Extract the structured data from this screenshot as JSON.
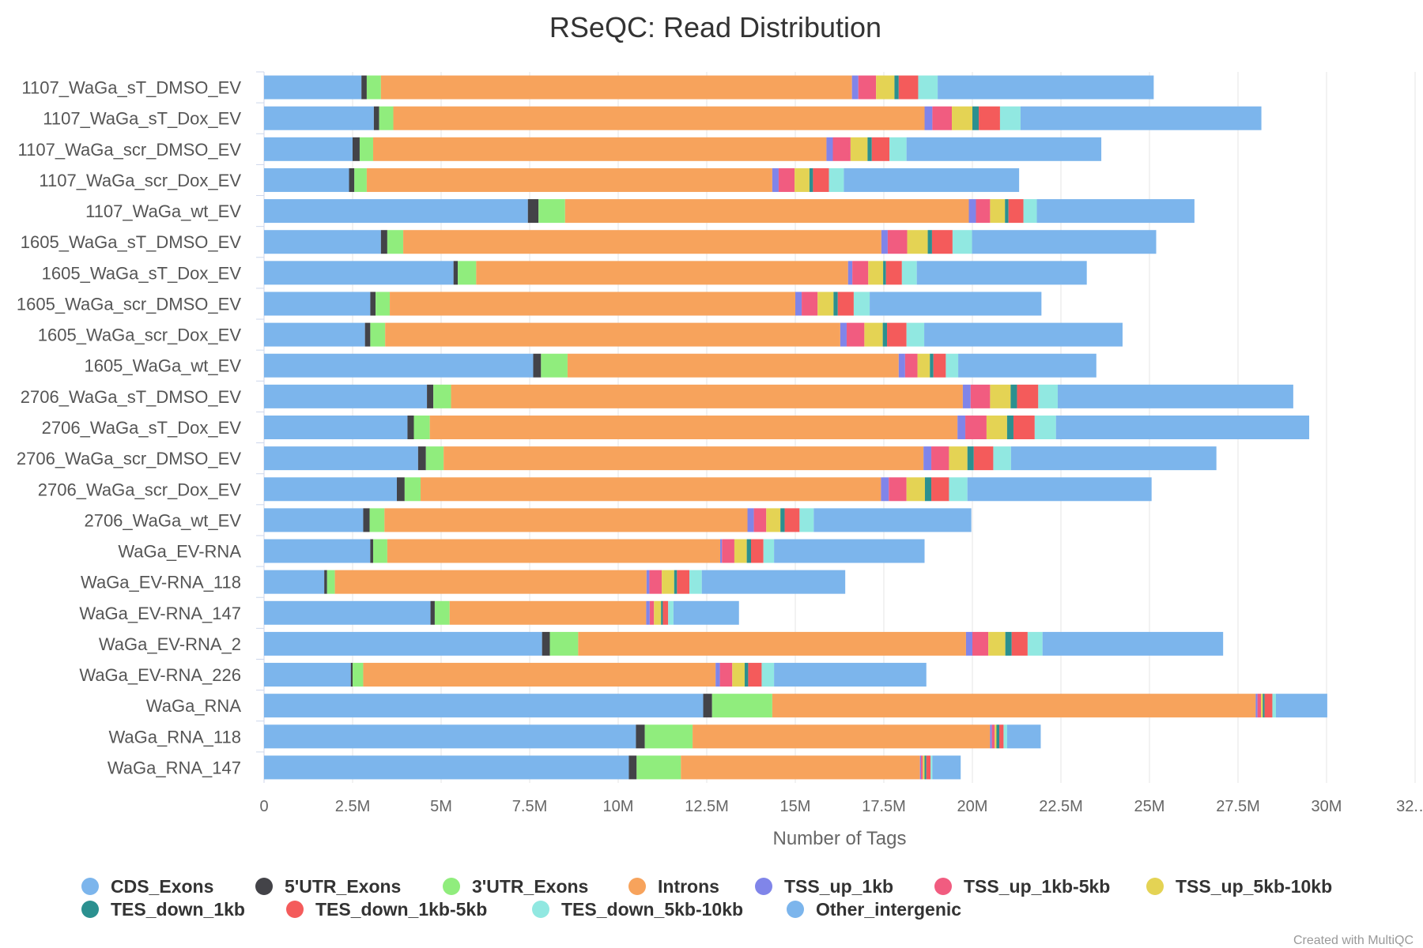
{
  "chart_data": {
    "type": "bar",
    "orientation": "horizontal",
    "stacked": true,
    "title": "RSeQC: Read Distribution",
    "xlabel": "Number of Tags",
    "ylabel": "",
    "xlim": [
      0,
      32500000
    ],
    "x_ticks": [
      "0",
      "2.5M",
      "5M",
      "7.5M",
      "10M",
      "12.5M",
      "15M",
      "17.5M",
      "20M",
      "22.5M",
      "25M",
      "27.5M",
      "30M",
      "32.…"
    ],
    "grid": true,
    "legend_position": "bottom",
    "credit": "Created with MultiQC",
    "categories": [
      "1107_WaGa_sT_DMSO_EV",
      "1107_WaGa_sT_Dox_EV",
      "1107_WaGa_scr_DMSO_EV",
      "1107_WaGa_scr_Dox_EV",
      "1107_WaGa_wt_EV",
      "1605_WaGa_sT_DMSO_EV",
      "1605_WaGa_sT_Dox_EV",
      "1605_WaGa_scr_DMSO_EV",
      "1605_WaGa_scr_Dox_EV",
      "1605_WaGa_wt_EV",
      "2706_WaGa_sT_DMSO_EV",
      "2706_WaGa_sT_Dox_EV",
      "2706_WaGa_scr_DMSO_EV",
      "2706_WaGa_scr_Dox_EV",
      "2706_WaGa_wt_EV",
      "WaGa_EV-RNA",
      "WaGa_EV-RNA_118",
      "WaGa_EV-RNA_147",
      "WaGa_EV-RNA_2",
      "WaGa_EV-RNA_226",
      "WaGa_RNA",
      "WaGa_RNA_118",
      "WaGa_RNA_147"
    ],
    "series": [
      {
        "name": "CDS_Exons",
        "color": "#7cb5ec",
        "values": [
          2.75,
          3.1,
          2.5,
          2.4,
          7.45,
          3.3,
          5.35,
          3.0,
          2.85,
          7.6,
          4.6,
          4.05,
          4.35,
          3.75,
          2.8,
          3.0,
          1.7,
          4.7,
          7.85,
          2.45,
          12.4,
          10.5,
          10.3
        ]
      },
      {
        "name": "5'UTR_Exons",
        "color": "#434348",
        "values": [
          0.15,
          0.15,
          0.2,
          0.15,
          0.3,
          0.18,
          0.12,
          0.15,
          0.15,
          0.22,
          0.18,
          0.18,
          0.22,
          0.22,
          0.18,
          0.08,
          0.08,
          0.12,
          0.22,
          0.05,
          0.25,
          0.25,
          0.22
        ]
      },
      {
        "name": "3'UTR_Exons",
        "color": "#90ed7d",
        "values": [
          0.4,
          0.4,
          0.38,
          0.35,
          0.75,
          0.45,
          0.52,
          0.4,
          0.42,
          0.75,
          0.5,
          0.45,
          0.5,
          0.45,
          0.42,
          0.4,
          0.22,
          0.42,
          0.8,
          0.3,
          1.7,
          1.35,
          1.25
        ]
      },
      {
        "name": "Introns",
        "color": "#f7a35c",
        "values": [
          13.3,
          15.0,
          12.8,
          11.45,
          11.4,
          13.5,
          10.5,
          11.45,
          12.85,
          9.35,
          14.45,
          14.9,
          13.55,
          13.0,
          10.25,
          9.4,
          8.8,
          5.55,
          10.95,
          9.95,
          13.65,
          8.4,
          6.75
        ]
      },
      {
        "name": "TSS_up_1kb",
        "color": "#8085e9",
        "values": [
          0.18,
          0.22,
          0.18,
          0.18,
          0.2,
          0.18,
          0.12,
          0.18,
          0.18,
          0.18,
          0.22,
          0.22,
          0.22,
          0.22,
          0.18,
          0.05,
          0.08,
          0.1,
          0.18,
          0.12,
          0.05,
          0.05,
          0.03
        ]
      },
      {
        "name": "TSS_up_1kb-5kb",
        "color": "#f15c80",
        "values": [
          0.5,
          0.55,
          0.5,
          0.45,
          0.4,
          0.55,
          0.45,
          0.45,
          0.5,
          0.35,
          0.55,
          0.6,
          0.5,
          0.5,
          0.35,
          0.35,
          0.35,
          0.12,
          0.45,
          0.35,
          0.1,
          0.08,
          0.05
        ]
      },
      {
        "name": "TSS_up_5kb-10kb",
        "color": "#e4d354",
        "values": [
          0.52,
          0.58,
          0.48,
          0.42,
          0.42,
          0.58,
          0.42,
          0.45,
          0.52,
          0.35,
          0.58,
          0.58,
          0.52,
          0.52,
          0.4,
          0.35,
          0.35,
          0.2,
          0.48,
          0.35,
          0.05,
          0.05,
          0.05
        ]
      },
      {
        "name": "TES_down_1kb",
        "color": "#2b908f",
        "values": [
          0.12,
          0.18,
          0.12,
          0.1,
          0.1,
          0.12,
          0.08,
          0.12,
          0.12,
          0.1,
          0.18,
          0.18,
          0.18,
          0.18,
          0.12,
          0.12,
          0.08,
          0.05,
          0.18,
          0.1,
          0.05,
          0.08,
          0.05
        ]
      },
      {
        "name": "TES_down_1kb-5kb",
        "color": "#f45b5b",
        "values": [
          0.55,
          0.6,
          0.5,
          0.45,
          0.42,
          0.58,
          0.45,
          0.45,
          0.55,
          0.35,
          0.6,
          0.6,
          0.55,
          0.5,
          0.42,
          0.35,
          0.35,
          0.15,
          0.45,
          0.38,
          0.22,
          0.12,
          0.12
        ]
      },
      {
        "name": "TES_down_5kb-10kb",
        "color": "#91e8e1",
        "values": [
          0.55,
          0.58,
          0.48,
          0.42,
          0.38,
          0.55,
          0.42,
          0.45,
          0.5,
          0.35,
          0.55,
          0.6,
          0.5,
          0.52,
          0.4,
          0.3,
          0.35,
          0.15,
          0.42,
          0.35,
          0.1,
          0.1,
          0.05
        ]
      },
      {
        "name": "Other_intergenic",
        "color": "#7cb5ec",
        "values": [
          6.1,
          6.8,
          5.5,
          4.95,
          4.45,
          5.2,
          4.8,
          4.85,
          5.6,
          3.9,
          6.65,
          7.15,
          5.8,
          5.2,
          4.45,
          4.25,
          4.05,
          1.85,
          5.1,
          4.3,
          1.45,
          0.95,
          0.8
        ]
      }
    ]
  }
}
